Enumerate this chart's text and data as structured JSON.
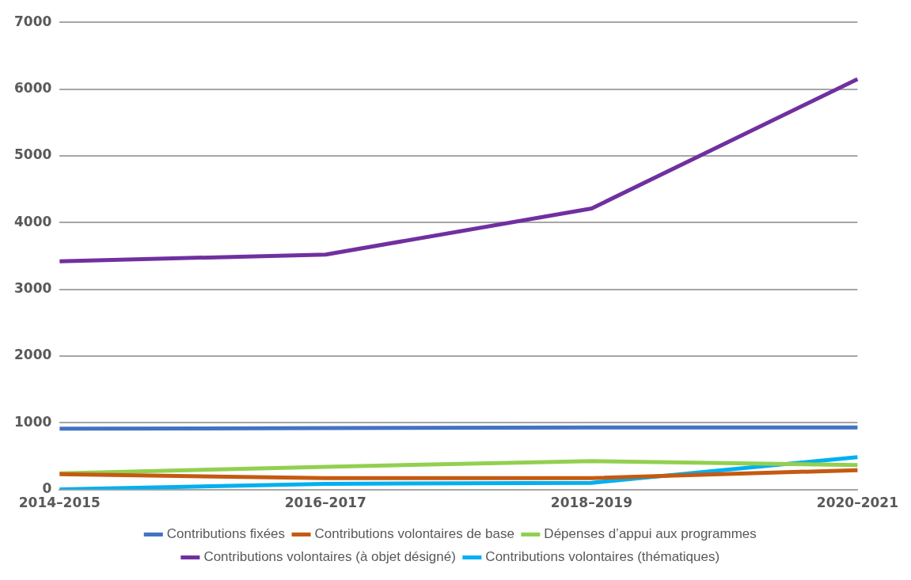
{
  "chart_data": {
    "type": "line",
    "categories": [
      "2014–2015",
      "2016–2017",
      "2018–2019",
      "2020–2021"
    ],
    "series": [
      {
        "name": "Contributions fixées",
        "color": "#4472c4",
        "values": [
          910,
          920,
          930,
          930
        ]
      },
      {
        "name": "Contributions volontaires de base",
        "color": "#c55a11",
        "values": [
          230,
          170,
          170,
          290
        ]
      },
      {
        "name": "Dépenses d’appui aux programmes",
        "color": "#92d050",
        "values": [
          240,
          340,
          425,
          365
        ]
      },
      {
        "name": "Contributions volontaires (à objet désigné)",
        "color": "#7030a0",
        "values": [
          3420,
          3520,
          4210,
          6150
        ]
      },
      {
        "name": "Contributions volontaires (thématiques)",
        "color": "#00b0f0",
        "values": [
          0,
          85,
          100,
          485
        ]
      }
    ],
    "ylim": [
      0,
      7000
    ],
    "yticks": [
      0,
      1000,
      2000,
      3000,
      4000,
      5000,
      6000,
      7000
    ],
    "grid": "y",
    "legend": "bottom",
    "marker": "none",
    "line_style": "solid"
  }
}
